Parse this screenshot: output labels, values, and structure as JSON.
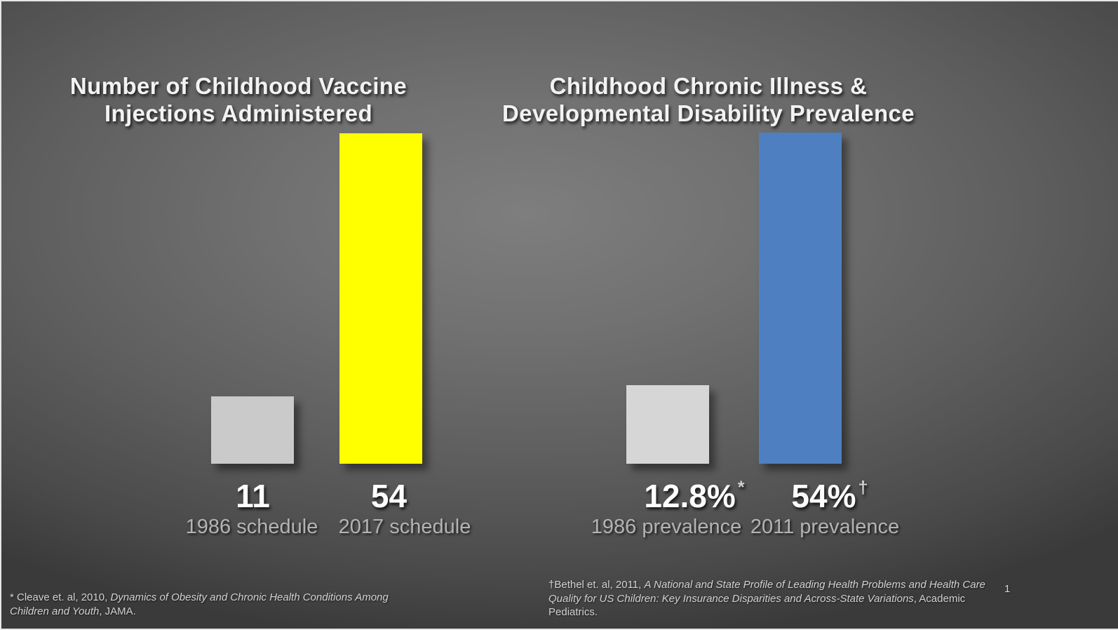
{
  "slide": {
    "page_number": "1"
  },
  "titles": {
    "left_lines": [
      "Number of Childhood Vaccine",
      "Injections Administered"
    ],
    "right_lines": [
      "Childhood Chronic Illness &",
      "Developmental Disability Prevalence"
    ]
  },
  "value_labels": {
    "left": [
      {
        "text": "11",
        "sup": ""
      },
      {
        "text": "54",
        "sup": ""
      }
    ],
    "right": [
      {
        "text": "12.8%",
        "sup": "*"
      },
      {
        "text": "54%",
        "sup": "†"
      }
    ]
  },
  "footnotes": {
    "left": {
      "lines": [
        [
          {
            "text": "* Cleave et. al, 2010, ",
            "italic": false
          },
          {
            "text": "Dynamics of Obesity and Chronic Health Conditions Among",
            "italic": true
          }
        ],
        [
          {
            "text": "Children and Youth",
            "italic": true
          },
          {
            "text": ", JAMA.",
            "italic": false
          }
        ]
      ]
    },
    "right": {
      "lines": [
        [
          {
            "text": "†Bethel et. al, 2011, ",
            "italic": false
          },
          {
            "text": "A National and State Profile of Leading Health Problems and Health Care",
            "italic": true
          }
        ],
        [
          {
            "text": "Quality for US Children: Key Insurance Disparities and Across-State Variations",
            "italic": true
          },
          {
            "text": ", Academic",
            "italic": false
          }
        ],
        [
          {
            "text": "Pediatrics.",
            "italic": false
          }
        ]
      ]
    }
  },
  "colors": {
    "background_center": "#7e7e7e",
    "background_edge": "#3a3a3a",
    "title_text": "#f2f2f2",
    "number_text": "#fdfdfd",
    "category_text": "#b3b3b3",
    "footnote_text": "#d2d2d2"
  },
  "chart_data": [
    {
      "type": "bar",
      "title": "Number of Childhood Vaccine Injections Administered",
      "categories": [
        "1986 schedule",
        "2017 schedule"
      ],
      "values": [
        11,
        54
      ],
      "value_labels": [
        "11",
        "54"
      ],
      "bar_colors": [
        "#cacaca",
        "#ffff00"
      ],
      "ylim": [
        0,
        54
      ],
      "grid": false,
      "axes_visible": false,
      "value_label_position": "below-bars"
    },
    {
      "type": "bar",
      "title": "Childhood Chronic Illness & Developmental Disability Prevalence",
      "categories": [
        "1986 prevalence",
        "2011 prevalence"
      ],
      "values": [
        12.8,
        54
      ],
      "unit": "%",
      "value_labels": [
        "12.8%*",
        "54%†"
      ],
      "bar_colors": [
        "#d6d6d6",
        "#4e80c1"
      ],
      "ylim": [
        0,
        54
      ],
      "grid": false,
      "axes_visible": false,
      "value_label_position": "below-bars",
      "value_label_footnote_markers": [
        "*",
        "†"
      ]
    }
  ]
}
